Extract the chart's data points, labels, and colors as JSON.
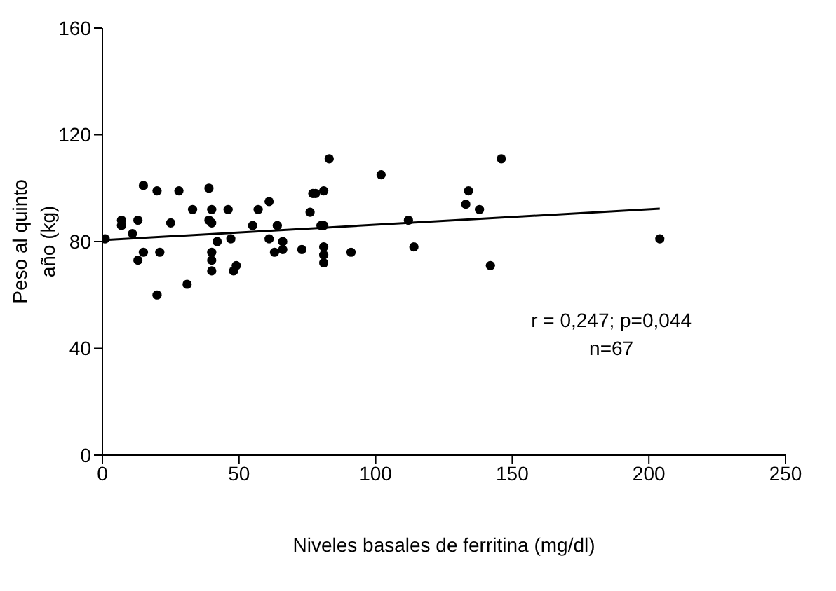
{
  "chart_data": {
    "type": "scatter",
    "xlabel": "Niveles basales de ferritina (mg/dl)",
    "ylabel": "Peso al quinto año (kg)",
    "xlim": [
      0,
      250
    ],
    "xticks": [
      0,
      50,
      100,
      150,
      200,
      250
    ],
    "ylim": [
      0,
      160
    ],
    "yticks": [
      0,
      40,
      80,
      120,
      160
    ],
    "marker": "circle",
    "annotations": [
      "r = 0,247; p=0,044",
      "n=67"
    ],
    "series": [
      {
        "color": "#000000",
        "x": [
          1,
          7,
          7,
          11,
          13,
          15,
          15,
          13,
          20,
          21,
          20,
          25,
          28,
          31,
          33,
          39,
          40,
          39,
          40,
          42,
          40,
          40,
          40,
          46,
          47,
          49,
          48,
          57,
          55,
          61,
          64,
          61,
          66,
          66,
          63,
          73,
          76,
          77,
          83,
          78,
          81,
          80,
          81,
          81,
          81,
          81,
          91,
          102,
          112,
          114,
          134,
          133,
          138,
          146,
          142,
          204
        ],
        "values": [
          81,
          88,
          86,
          83,
          88,
          101,
          76,
          73,
          99,
          76,
          60,
          87,
          99,
          64,
          92,
          100,
          92,
          88,
          87,
          80,
          76,
          73,
          69,
          92,
          81,
          71,
          69,
          92,
          86,
          95,
          86,
          81,
          80,
          77,
          76,
          77,
          91,
          98,
          111,
          98,
          99,
          86,
          86,
          78,
          75,
          72,
          76,
          105,
          88,
          78,
          99,
          94,
          92,
          111,
          71,
          81
        ]
      },
      {
        "type": "line",
        "marker": "none",
        "color": "#000000",
        "x": [
          0,
          204
        ],
        "values": [
          80.5,
          92.3
        ]
      }
    ]
  }
}
